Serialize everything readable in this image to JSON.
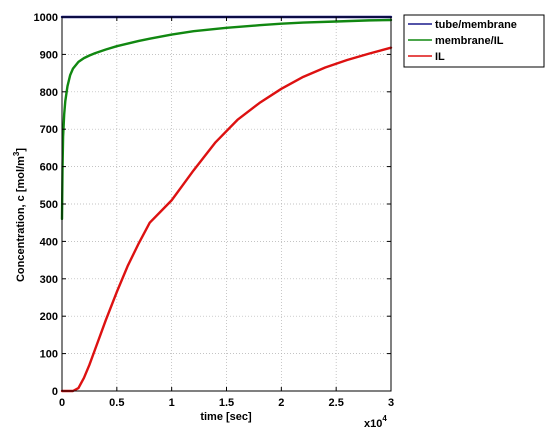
{
  "chart_data": {
    "type": "line",
    "xlabel": "time [sec]",
    "ylabel_main": "Concentration, c [mol/m",
    "ylabel_sup": "3",
    "ylabel_tail": "]",
    "x_multiplier_base": "x10",
    "x_multiplier_exp": "4",
    "xlim": [
      0,
      30000
    ],
    "ylim": [
      0,
      1000
    ],
    "xticks": [
      0,
      5000,
      10000,
      15000,
      20000,
      25000,
      30000
    ],
    "xtick_labels": [
      "0",
      "0.5",
      "1",
      "1.5",
      "2",
      "2.5",
      "3"
    ],
    "yticks": [
      0,
      100,
      200,
      300,
      400,
      500,
      600,
      700,
      800,
      900,
      1000
    ],
    "ytick_labels": [
      "0",
      "100",
      "200",
      "300",
      "400",
      "500",
      "600",
      "700",
      "800",
      "900",
      "1000"
    ],
    "grid": true,
    "legend_position": "outside-top-right",
    "series": [
      {
        "name": "tube/membrane",
        "color": "#1a1a8c",
        "x": [
          0,
          30000
        ],
        "y": [
          1000,
          1000
        ]
      },
      {
        "name": "membrane/IL",
        "color": "#118811",
        "x": [
          0,
          50,
          100,
          200,
          300,
          500,
          750,
          1000,
          1500,
          2000,
          2500,
          3000,
          4000,
          5000,
          6000,
          7000,
          8000,
          10000,
          12000,
          15000,
          18000,
          20000,
          22000,
          25000,
          28000,
          30000
        ],
        "y": [
          460,
          600,
          680,
          740,
          775,
          815,
          845,
          862,
          880,
          890,
          897,
          903,
          913,
          922,
          929,
          936,
          942,
          953,
          962,
          971,
          978,
          982,
          985,
          988,
          991,
          992
        ]
      },
      {
        "name": "IL",
        "color": "#dd1111",
        "x": [
          0,
          1000,
          1500,
          2000,
          2500,
          3000,
          3500,
          4000,
          5000,
          6000,
          7000,
          8000,
          9000,
          10000,
          11000,
          12000,
          14000,
          16000,
          18000,
          20000,
          22000,
          24000,
          26000,
          28000,
          30000
        ],
        "y": [
          0,
          0,
          8,
          35,
          70,
          110,
          150,
          190,
          265,
          335,
          395,
          450,
          480,
          510,
          550,
          590,
          665,
          725,
          770,
          808,
          840,
          865,
          885,
          902,
          918
        ]
      }
    ]
  }
}
